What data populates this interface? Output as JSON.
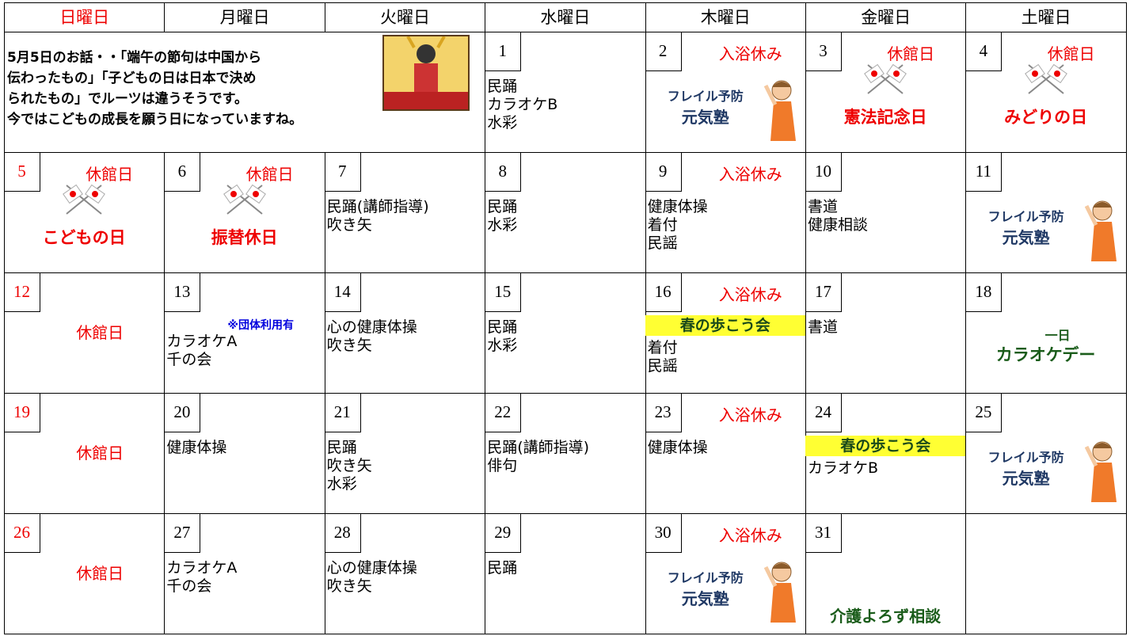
{
  "headers": [
    "日曜日",
    "月曜日",
    "火曜日",
    "水曜日",
    "木曜日",
    "金曜日",
    "土曜日"
  ],
  "intro": [
    "5月5日のお話・・「端午の節句は中国から",
    "伝わったもの」「子どもの日は日本で決め",
    "られたもの」でルーツは違うそうです。",
    "今ではこどもの成長を願う日になっていますね。"
  ],
  "weeks": [
    [
      {
        "day": "1",
        "items": [
          "民踊",
          "カラオケB",
          "水彩"
        ]
      },
      {
        "day": "2",
        "tag": "入浴休み",
        "frail": [
          "フレイル予防",
          "元気塾"
        ]
      },
      {
        "day": "3",
        "tag": "休館日",
        "holiday": "憲法記念日"
      },
      {
        "day": "4",
        "tag": "休館日",
        "holiday": "みどりの日"
      }
    ],
    [
      {
        "day": "5",
        "tag": "休館日",
        "holiday": "こどもの日"
      },
      {
        "day": "6",
        "tag": "休館日",
        "holiday": "振替休日"
      },
      {
        "day": "7",
        "items": [
          "民踊(講師指導)",
          "吹き矢"
        ]
      },
      {
        "day": "8",
        "items": [
          "民踊",
          "水彩"
        ]
      },
      {
        "day": "9",
        "tag": "入浴休み",
        "items": [
          "健康体操",
          "着付",
          "民謡"
        ]
      },
      {
        "day": "10",
        "items": [
          "書道",
          "健康相談"
        ]
      },
      {
        "day": "11",
        "frail": [
          "フレイル予防",
          "元気塾"
        ]
      }
    ],
    [
      {
        "day": "12",
        "closed": "休館日"
      },
      {
        "day": "13",
        "note": "※団体利用有",
        "items": [
          "カラオケA",
          "千の会"
        ]
      },
      {
        "day": "14",
        "items": [
          "心の健康体操",
          "吹き矢"
        ]
      },
      {
        "day": "15",
        "items": [
          "民踊",
          "水彩"
        ]
      },
      {
        "day": "16",
        "tag": "入浴休み",
        "event": "春の歩こう会",
        "items": [
          "着付",
          "民謡"
        ]
      },
      {
        "day": "17",
        "items": [
          "書道"
        ]
      },
      {
        "day": "18",
        "karaoke": [
          "一日",
          "カラオケデー"
        ]
      }
    ],
    [
      {
        "day": "19",
        "closed": "休館日"
      },
      {
        "day": "20",
        "items": [
          "健康体操"
        ]
      },
      {
        "day": "21",
        "items": [
          "民踊",
          "吹き矢",
          "水彩"
        ]
      },
      {
        "day": "22",
        "items": [
          "民踊(講師指導)",
          "俳句"
        ]
      },
      {
        "day": "23",
        "tag": "入浴休み",
        "items": [
          "健康体操"
        ]
      },
      {
        "day": "24",
        "event": "春の歩こう会",
        "items": [
          "カラオケB"
        ]
      },
      {
        "day": "25",
        "frail": [
          "フレイル予防",
          "元気塾"
        ]
      }
    ],
    [
      {
        "day": "26",
        "closed": "休館日"
      },
      {
        "day": "27",
        "items": [
          "カラオケA",
          "千の会"
        ]
      },
      {
        "day": "28",
        "items": [
          "心の健康体操",
          "吹き矢"
        ]
      },
      {
        "day": "29",
        "items": [
          "民踊"
        ]
      },
      {
        "day": "30",
        "tag": "入浴休み",
        "frail": [
          "フレイル予防",
          "元気塾"
        ]
      },
      {
        "day": "31",
        "consult": "介護よろず相談"
      },
      {}
    ]
  ]
}
